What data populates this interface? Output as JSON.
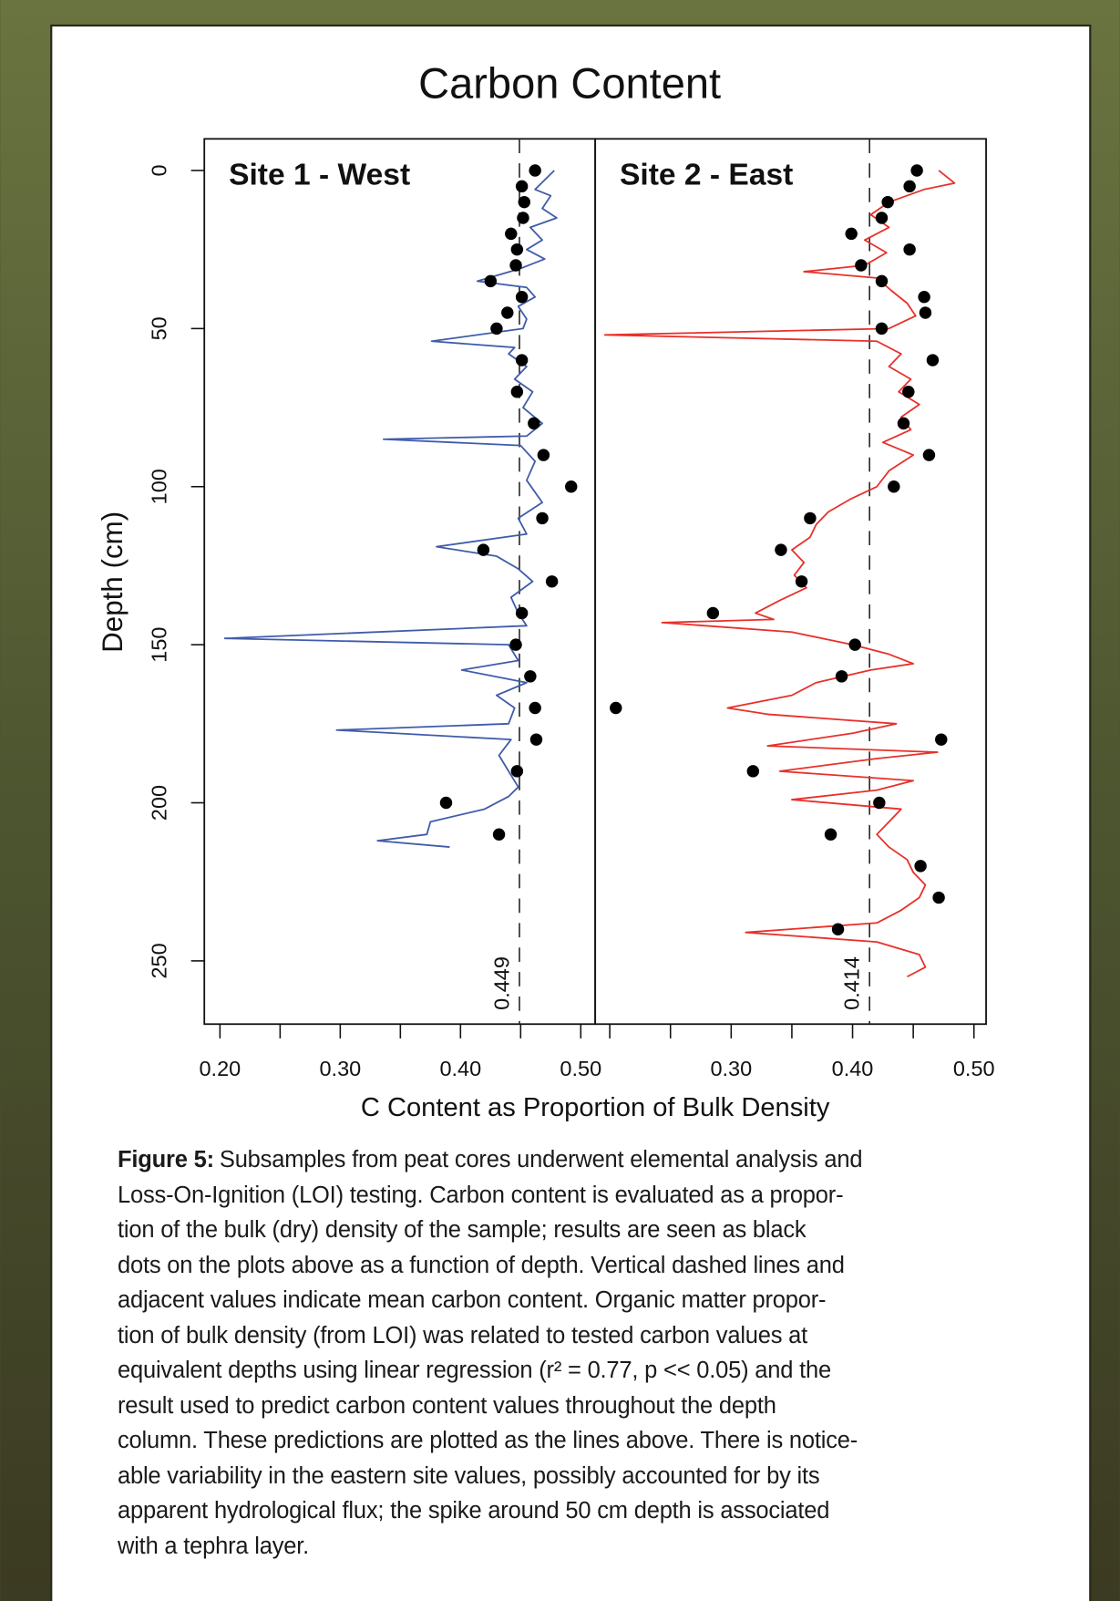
{
  "title": "Carbon Content",
  "ylabel": "Depth (cm)",
  "xlabel": "C Content as Proportion of Bulk Density",
  "caption_label": "Figure 5:",
  "caption_lines": [
    "Subsamples from peat cores underwent elemental analysis and",
    "Loss-On-Ignition (LOI) testing. Carbon content is evaluated as a propor-",
    "tion of the bulk (dry) density of the sample; results are seen as black",
    "dots on the plots above as a function of depth. Vertical dashed lines and",
    "adjacent values indicate mean carbon content. Organic matter propor-",
    "tion of bulk density (from LOI) was related to tested carbon values at",
    "equivalent depths using linear regression (r² = 0.77, p << 0.05) and the",
    "result used to predict carbon content values throughout the depth",
    "column. These predictions are plotted as the lines above. There is notice-",
    "able variability in the eastern site values, possibly accounted for by its",
    "apparent hydrological flux; the spike around 50 cm depth is associated",
    "with a tephra layer."
  ],
  "chart_data": [
    {
      "type": "scatter",
      "title": "Site 1 - West",
      "xlim": [
        0.187,
        0.512
      ],
      "ylim": [
        270,
        -10
      ],
      "xticks": [
        {
          "value": 0.2,
          "label": "0.20"
        },
        {
          "value": 0.3,
          "label": "0.30"
        },
        {
          "value": 0.4,
          "label": "0.40"
        },
        {
          "value": 0.5,
          "label": "0.50"
        }
      ],
      "xminor_ticks": [
        0.25,
        0.35,
        0.45
      ],
      "yticks": [
        0,
        50,
        100,
        150,
        200,
        250
      ],
      "mean": 0.449,
      "line": {
        "color": "#3f5bab",
        "y": [
          0,
          3,
          6,
          8,
          12,
          15,
          18,
          22,
          25,
          28,
          31,
          35,
          37,
          40,
          43,
          47,
          50,
          54,
          56,
          58,
          62,
          66,
          70,
          75,
          80,
          84,
          85,
          87,
          92,
          98,
          105,
          110,
          115,
          119,
          122,
          126,
          130,
          135,
          140,
          144,
          148,
          150,
          155,
          158,
          162,
          166,
          170,
          175,
          177,
          180,
          185,
          190,
          195,
          198,
          202,
          206,
          210,
          212,
          214
        ],
        "x": [
          0.478,
          0.47,
          0.462,
          0.475,
          0.468,
          0.48,
          0.458,
          0.468,
          0.455,
          0.47,
          0.45,
          0.414,
          0.455,
          0.462,
          0.448,
          0.455,
          0.452,
          0.376,
          0.445,
          0.44,
          0.455,
          0.445,
          0.46,
          0.452,
          0.468,
          0.455,
          0.336,
          0.45,
          0.462,
          0.455,
          0.468,
          0.448,
          0.455,
          0.38,
          0.43,
          0.448,
          0.46,
          0.442,
          0.448,
          0.455,
          0.204,
          0.44,
          0.448,
          0.401,
          0.455,
          0.43,
          0.445,
          0.44,
          0.297,
          0.442,
          0.432,
          0.44,
          0.448,
          0.44,
          0.42,
          0.375,
          0.372,
          0.331,
          0.391
        ]
      },
      "points": {
        "color": "#000000",
        "y": [
          0,
          5,
          10,
          15,
          20,
          25,
          30,
          35,
          40,
          45,
          50,
          60,
          70,
          80,
          90,
          100,
          110,
          120,
          130,
          140,
          150,
          160,
          170,
          180,
          190,
          200,
          210
        ],
        "x": [
          0.462,
          0.451,
          0.453,
          0.452,
          0.442,
          0.447,
          0.446,
          0.425,
          0.451,
          0.439,
          0.43,
          0.451,
          0.447,
          0.461,
          0.469,
          0.492,
          0.468,
          0.419,
          0.476,
          0.451,
          0.446,
          0.458,
          0.462,
          0.463,
          0.447,
          0.388,
          0.432
        ]
      }
    },
    {
      "type": "scatter",
      "title": "Site 2 - East",
      "xlim": [
        0.188,
        0.51
      ],
      "ylim": [
        270,
        -10
      ],
      "xticks": [
        {
          "value": 0.3,
          "label": "0.30"
        },
        {
          "value": 0.4,
          "label": "0.40"
        },
        {
          "value": 0.5,
          "label": "0.50"
        }
      ],
      "xminor_ticks": [
        0.2,
        0.25,
        0.35,
        0.45
      ],
      "mean": 0.414,
      "line": {
        "color": "#e8302a",
        "y": [
          0,
          4,
          6,
          10,
          14,
          18,
          22,
          26,
          30,
          32,
          34,
          38,
          42,
          46,
          50,
          52,
          54,
          58,
          62,
          66,
          70,
          74,
          78,
          82,
          86,
          90,
          95,
          100,
          104,
          108,
          112,
          116,
          120,
          124,
          128,
          132,
          136,
          140,
          142,
          143,
          146,
          150,
          153,
          156,
          158,
          162,
          166,
          170,
          172,
          175,
          178,
          182,
          184,
          186,
          190,
          193,
          196,
          199,
          202,
          206,
          210,
          214,
          218,
          222,
          226,
          230,
          234,
          238,
          241,
          244,
          248,
          252,
          255
        ],
        "x": [
          0.471,
          0.484,
          0.459,
          0.43,
          0.415,
          0.43,
          0.41,
          0.428,
          0.41,
          0.36,
          0.42,
          0.432,
          0.445,
          0.452,
          0.43,
          0.196,
          0.42,
          0.44,
          0.43,
          0.448,
          0.438,
          0.455,
          0.44,
          0.448,
          0.425,
          0.45,
          0.43,
          0.42,
          0.398,
          0.38,
          0.37,
          0.365,
          0.35,
          0.36,
          0.352,
          0.362,
          0.34,
          0.32,
          0.335,
          0.243,
          0.35,
          0.4,
          0.43,
          0.45,
          0.415,
          0.37,
          0.35,
          0.297,
          0.33,
          0.436,
          0.4,
          0.33,
          0.47,
          0.42,
          0.34,
          0.45,
          0.42,
          0.35,
          0.44,
          0.43,
          0.42,
          0.43,
          0.445,
          0.45,
          0.46,
          0.455,
          0.44,
          0.42,
          0.312,
          0.42,
          0.455,
          0.46,
          0.445
        ]
      },
      "points": {
        "color": "#000000",
        "y": [
          0,
          5,
          10,
          15,
          20,
          25,
          30,
          35,
          40,
          45,
          50,
          60,
          70,
          80,
          90,
          100,
          110,
          120,
          130,
          140,
          150,
          160,
          170,
          180,
          190,
          200,
          210,
          220,
          230,
          240
        ],
        "x": [
          0.453,
          0.447,
          0.429,
          0.424,
          0.399,
          0.447,
          0.407,
          0.424,
          0.459,
          0.46,
          0.424,
          0.466,
          0.446,
          0.442,
          0.463,
          0.434,
          0.365,
          0.341,
          0.358,
          0.285,
          0.402,
          0.391,
          0.205,
          0.473,
          0.318,
          0.422,
          0.382,
          0.456,
          0.471,
          0.388
        ]
      }
    }
  ]
}
